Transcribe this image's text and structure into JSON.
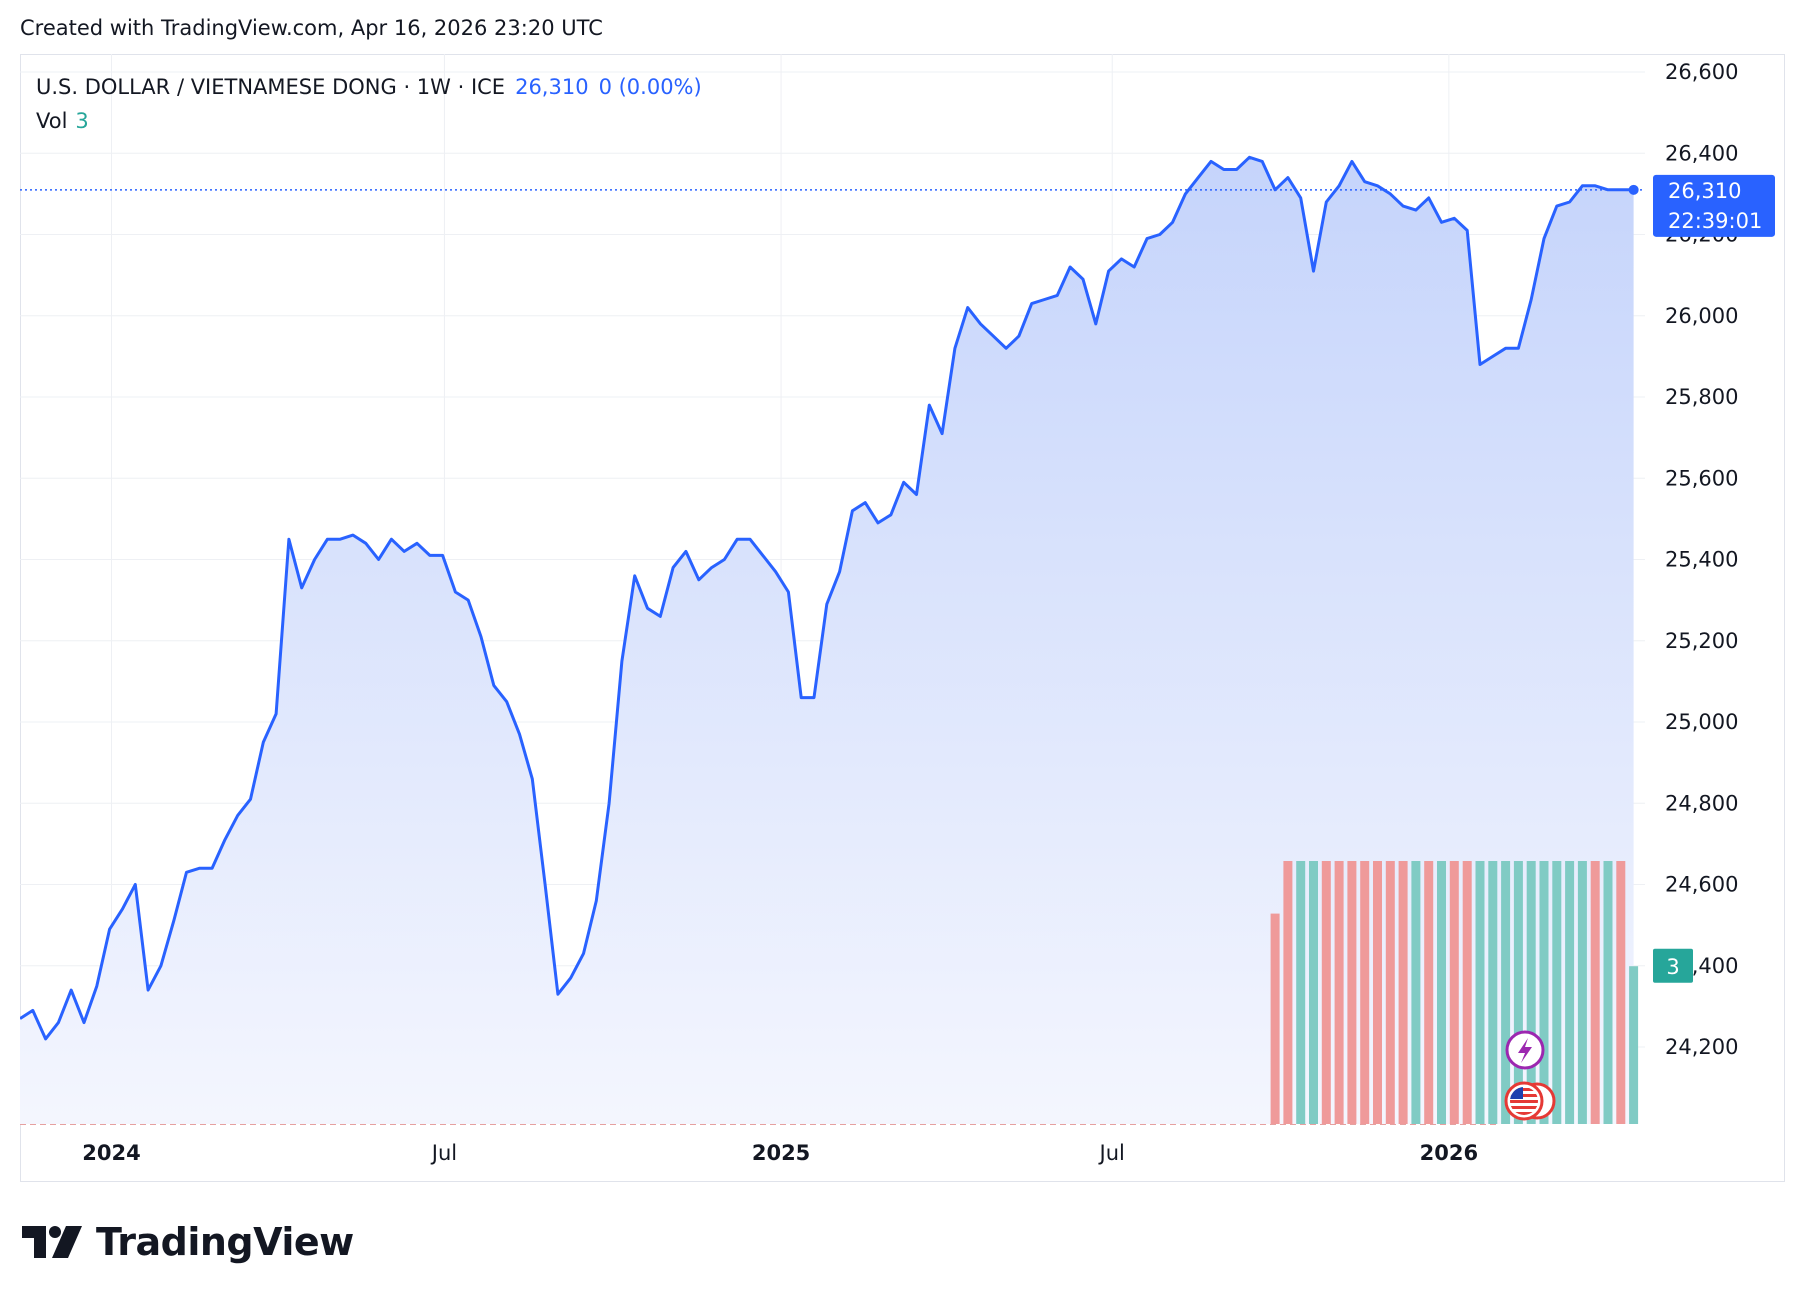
{
  "header": {
    "created_text": "Created with TradingView.com, Apr 16, 2026 23:20 UTC"
  },
  "legend": {
    "symbol": "U.S. DOLLAR / VIETNAMESE DONG · 1W · ICE",
    "last_price": "26,310",
    "change": "0 (0.00%)",
    "vol_label": "Vol",
    "vol_value": "3"
  },
  "price_tag": {
    "price": "26,310",
    "countdown": "22:39:01"
  },
  "vol_tag": {
    "value": "3"
  },
  "brand": {
    "name": "TradingView"
  },
  "colors": {
    "line": "#2962ff",
    "area_top": "#c5d4fb",
    "area_bottom": "#f4f6fe",
    "vol_up": "#80cbc4",
    "vol_down": "#ef9a9a",
    "grid": "#eef0f4",
    "price_tag_bg": "#2962ff",
    "vol_tag_bg": "#26a69a"
  },
  "icons": [
    "lightning-event-icon",
    "us-flag-icon"
  ],
  "chart_data": {
    "type": "area",
    "title": "U.S. DOLLAR / VIETNAMESE DONG · 1W · ICE",
    "xlabel": "",
    "ylabel": "",
    "ylim": [
      24000,
      26650
    ],
    "y_ticks": [
      24200,
      24400,
      24600,
      24800,
      25000,
      25200,
      25400,
      25600,
      25800,
      26000,
      26200,
      26400,
      26600
    ],
    "y_tick_labels": [
      "24,200",
      "24,400",
      "24,600",
      "24,800",
      "25,000",
      "25,200",
      "25,400",
      "25,600",
      "25,800",
      "26,000",
      "26,200",
      "26,400",
      "26,600"
    ],
    "x_ticks": [
      {
        "date": "2024-01-01",
        "label": "2024",
        "bold": true
      },
      {
        "date": "2024-07-01",
        "label": "Jul",
        "bold": false
      },
      {
        "date": "2025-01-01",
        "label": "2025",
        "bold": true
      },
      {
        "date": "2025-07-01",
        "label": "Jul",
        "bold": false
      },
      {
        "date": "2026-01-01",
        "label": "2026",
        "bold": true
      }
    ],
    "x_range": [
      "2023-11-12",
      "2026-07-01"
    ],
    "grid": true,
    "series": [
      {
        "name": "U.S. DOLLAR / VIETNAMESE DONG",
        "x": [
          "2023-11-12",
          "2023-11-19",
          "2023-11-26",
          "2023-12-03",
          "2023-12-10",
          "2023-12-17",
          "2023-12-24",
          "2023-12-31",
          "2024-01-07",
          "2024-01-14",
          "2024-01-21",
          "2024-01-28",
          "2024-02-04",
          "2024-02-11",
          "2024-02-18",
          "2024-02-25",
          "2024-03-03",
          "2024-03-10",
          "2024-03-17",
          "2024-03-24",
          "2024-03-31",
          "2024-04-07",
          "2024-04-14",
          "2024-04-21",
          "2024-04-28",
          "2024-05-05",
          "2024-05-12",
          "2024-05-19",
          "2024-05-26",
          "2024-06-02",
          "2024-06-09",
          "2024-06-16",
          "2024-06-23",
          "2024-06-30",
          "2024-07-07",
          "2024-07-14",
          "2024-07-21",
          "2024-07-28",
          "2024-08-04",
          "2024-08-11",
          "2024-08-18",
          "2024-08-25",
          "2024-09-01",
          "2024-09-08",
          "2024-09-15",
          "2024-09-22",
          "2024-09-29",
          "2024-10-06",
          "2024-10-13",
          "2024-10-20",
          "2024-10-27",
          "2024-11-03",
          "2024-11-10",
          "2024-11-17",
          "2024-11-24",
          "2024-12-01",
          "2024-12-08",
          "2024-12-15",
          "2024-12-22",
          "2024-12-29",
          "2025-01-05",
          "2025-01-12",
          "2025-01-19",
          "2025-01-26",
          "2025-02-02",
          "2025-02-09",
          "2025-02-16",
          "2025-02-23",
          "2025-03-02",
          "2025-03-09",
          "2025-03-16",
          "2025-03-23",
          "2025-03-30",
          "2025-04-06",
          "2025-04-13",
          "2025-04-20",
          "2025-04-27",
          "2025-05-04",
          "2025-05-11",
          "2025-05-18",
          "2025-05-25",
          "2025-06-01",
          "2025-06-08",
          "2025-06-15",
          "2025-06-22",
          "2025-06-29",
          "2025-07-06",
          "2025-07-13",
          "2025-07-20",
          "2025-07-27",
          "2025-08-03",
          "2025-08-10",
          "2025-08-17",
          "2025-08-24",
          "2025-08-31",
          "2025-09-07",
          "2025-09-14",
          "2025-09-21",
          "2025-09-28",
          "2025-10-05",
          "2025-10-12",
          "2025-10-19",
          "2025-10-26",
          "2025-11-02",
          "2025-11-09",
          "2025-11-16",
          "2025-11-23",
          "2025-11-30",
          "2025-12-07",
          "2025-12-14",
          "2025-12-21",
          "2025-12-28",
          "2026-01-04",
          "2026-01-11",
          "2026-01-18",
          "2026-01-25",
          "2026-02-01",
          "2026-02-08",
          "2026-02-15",
          "2026-02-22",
          "2026-03-01",
          "2026-03-08",
          "2026-03-15",
          "2026-03-22",
          "2026-03-29",
          "2026-04-05",
          "2026-04-12"
        ],
        "values": [
          24270,
          24290,
          24220,
          24260,
          24340,
          24260,
          24350,
          24490,
          24540,
          24600,
          24340,
          24400,
          24510,
          24630,
          24640,
          24640,
          24710,
          24770,
          24810,
          24950,
          25020,
          25450,
          25330,
          25400,
          25450,
          25450,
          25460,
          25440,
          25400,
          25450,
          25420,
          25440,
          25410,
          25410,
          25320,
          25300,
          25210,
          25090,
          25050,
          24970,
          24860,
          24600,
          24330,
          24370,
          24430,
          24560,
          24800,
          25150,
          25360,
          25280,
          25260,
          25380,
          25420,
          25350,
          25380,
          25400,
          25450,
          25450,
          25410,
          25370,
          25320,
          25060,
          25060,
          25290,
          25370,
          25520,
          25540,
          25490,
          25510,
          25590,
          25560,
          25780,
          25710,
          25920,
          26020,
          25980,
          25950,
          25920,
          25950,
          26030,
          26040,
          26050,
          26120,
          26090,
          25980,
          26110,
          26140,
          26120,
          26190,
          26200,
          26230,
          26300,
          26340,
          26380,
          26360,
          26360,
          26390,
          26380,
          26310,
          26340,
          26290,
          26110,
          26280,
          26320,
          26380,
          26330,
          26320,
          26300,
          26270,
          26260,
          26290,
          26230,
          26240,
          26210,
          25880,
          25900,
          25920,
          25920,
          26040,
          26190,
          26270,
          26280,
          26320,
          26320,
          26310,
          26310,
          26310
        ]
      }
    ],
    "volume": {
      "name": "Vol",
      "x": [
        "2025-09-28",
        "2025-10-05",
        "2025-10-12",
        "2025-10-19",
        "2025-10-26",
        "2025-11-02",
        "2025-11-09",
        "2025-11-16",
        "2025-11-23",
        "2025-11-30",
        "2025-12-07",
        "2025-12-14",
        "2025-12-21",
        "2025-12-28",
        "2026-01-04",
        "2026-01-11",
        "2026-01-18",
        "2026-01-25",
        "2026-02-01",
        "2026-02-08",
        "2026-02-15",
        "2026-02-22",
        "2026-03-01",
        "2026-03-08",
        "2026-03-15",
        "2026-03-22",
        "2026-03-29",
        "2026-04-05",
        "2026-04-12"
      ],
      "values": [
        4,
        5,
        5,
        5,
        5,
        5,
        5,
        5,
        5,
        5,
        5,
        5,
        5,
        5,
        5,
        5,
        5,
        5,
        5,
        5,
        5,
        5,
        5,
        5,
        5,
        5,
        5,
        5,
        3
      ],
      "directions": [
        "down",
        "down",
        "up",
        "up",
        "down",
        "down",
        "down",
        "down",
        "down",
        "down",
        "down",
        "up",
        "down",
        "up",
        "down",
        "down",
        "up",
        "up",
        "up",
        "up",
        "up",
        "up",
        "up",
        "up",
        "up",
        "down",
        "up",
        "down",
        "up"
      ]
    }
  }
}
